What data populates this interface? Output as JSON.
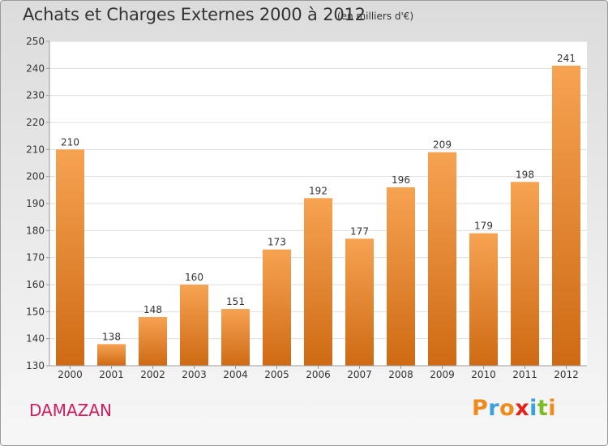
{
  "header": {
    "title": "Achats et Charges Externes 2000 à 2012",
    "subtitle": "(en milliers d'€)"
  },
  "footer": {
    "commune": "DAMAZAN",
    "logo": {
      "letters": [
        "P",
        "r",
        "o",
        "x",
        "i",
        "t",
        "i"
      ],
      "colors": [
        "#f08a1c",
        "#3aa0e0",
        "#f08a1c",
        "#e2231a",
        "#3aa0e0",
        "#7dbb2b",
        "#f08a1c"
      ]
    }
  },
  "chart_data": {
    "type": "bar",
    "title": "Achats et Charges Externes 2000 à 2012",
    "subtitle": "(en milliers d'€)",
    "xlabel": "",
    "ylabel": "",
    "categories": [
      "2000",
      "2001",
      "2002",
      "2003",
      "2004",
      "2005",
      "2006",
      "2007",
      "2008",
      "2009",
      "2010",
      "2011",
      "2012"
    ],
    "values": [
      210,
      138,
      148,
      160,
      151,
      173,
      192,
      177,
      196,
      209,
      179,
      198,
      241
    ],
    "ylim": [
      130,
      250
    ],
    "yticks": [
      130,
      140,
      150,
      160,
      170,
      180,
      190,
      200,
      210,
      220,
      230,
      240,
      250
    ],
    "grid": true,
    "bar_color": "#f0953c"
  }
}
